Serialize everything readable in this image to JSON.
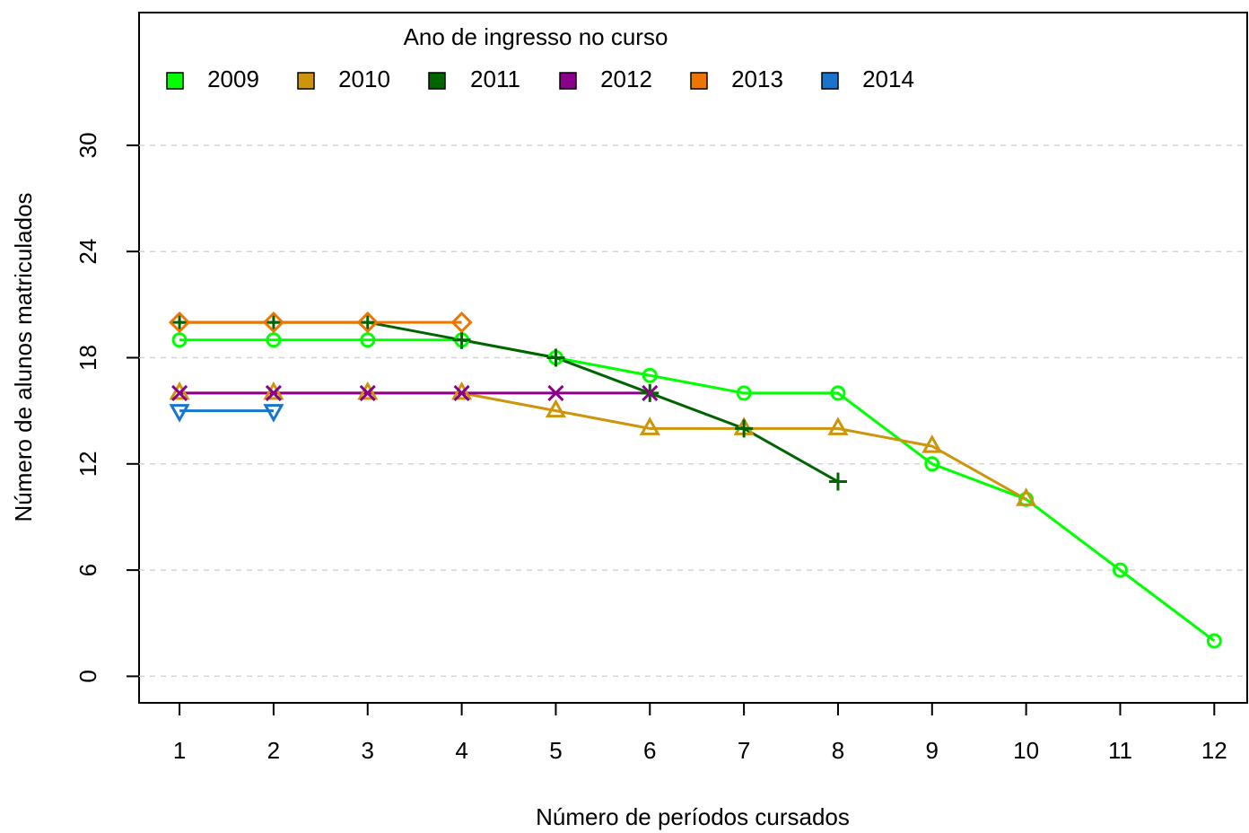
{
  "chart_data": {
    "type": "line",
    "legend_title": "Ano de ingresso no curso",
    "x_label": "Número de períodos cursados",
    "y_label": "Número de alunos matriculados",
    "x": [
      1,
      2,
      3,
      4,
      5,
      6,
      7,
      8,
      9,
      10,
      11,
      12
    ],
    "xlim": [
      0.57,
      12.35
    ],
    "xticks": [
      1,
      2,
      3,
      4,
      5,
      6,
      7,
      8,
      9,
      10,
      11,
      12
    ],
    "ylim": [
      -1.5,
      37.5
    ],
    "yticks": [
      0,
      6,
      12,
      18,
      24,
      30
    ],
    "grid": true,
    "legend_position": "top",
    "series": [
      {
        "name": "2009",
        "color": "#00ff00",
        "marker": "circle",
        "values": [
          19,
          19,
          19,
          19,
          18,
          17,
          16,
          16,
          12,
          10,
          6,
          2
        ]
      },
      {
        "name": "2010",
        "color": "#cd950c",
        "marker": "triangle",
        "values": [
          16,
          16,
          16,
          16,
          15,
          14,
          14,
          14,
          13,
          10,
          null,
          null
        ]
      },
      {
        "name": "2011",
        "color": "#006400",
        "marker": "plus",
        "values": [
          20,
          20,
          20,
          19,
          18,
          16,
          14,
          11,
          null,
          null,
          null,
          null
        ]
      },
      {
        "name": "2012",
        "color": "#8b008b",
        "marker": "cross",
        "values": [
          16,
          16,
          16,
          16,
          16,
          16,
          null,
          null,
          null,
          null,
          null,
          null
        ]
      },
      {
        "name": "2013",
        "color": "#ee7600",
        "marker": "diamond",
        "values": [
          20,
          20,
          20,
          20,
          null,
          null,
          null,
          null,
          null,
          null,
          null,
          null
        ]
      },
      {
        "name": "2014",
        "color": "#1874cd",
        "marker": "down-triangle",
        "values": [
          15,
          15,
          null,
          null,
          null,
          null,
          null,
          null,
          null,
          null,
          null,
          null
        ]
      }
    ]
  }
}
